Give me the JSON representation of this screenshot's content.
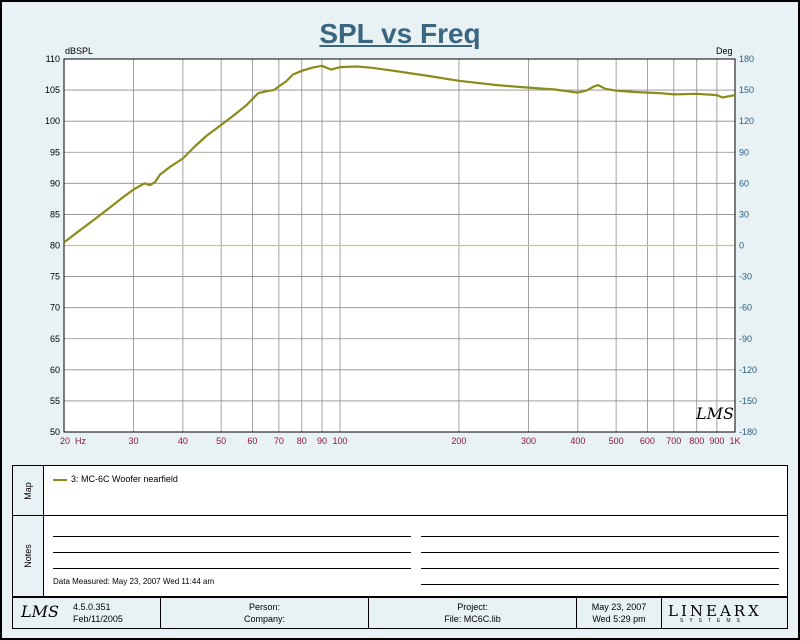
{
  "chart_data": {
    "type": "line",
    "title": "SPL vs Freq",
    "ylabel": "dBSPL",
    "y2label": "Deg",
    "x_scale": "log",
    "xlim": [
      20,
      1000
    ],
    "ylim": [
      50,
      110
    ],
    "y2lim": [
      -180,
      180
    ],
    "grid": true,
    "x_ticks": [
      {
        "v": 20,
        "t": "20"
      },
      {
        "v": 30,
        "t": "30"
      },
      {
        "v": 40,
        "t": "40"
      },
      {
        "v": 50,
        "t": "50"
      },
      {
        "v": 60,
        "t": "60"
      },
      {
        "v": 70,
        "t": "70"
      },
      {
        "v": 80,
        "t": "80"
      },
      {
        "v": 90,
        "t": "90"
      },
      {
        "v": 100,
        "t": "100"
      },
      {
        "v": 200,
        "t": "200"
      },
      {
        "v": 300,
        "t": "300"
      },
      {
        "v": 400,
        "t": "400"
      },
      {
        "v": 500,
        "t": "500"
      },
      {
        "v": 600,
        "t": "600"
      },
      {
        "v": 700,
        "t": "700"
      },
      {
        "v": 800,
        "t": "800"
      },
      {
        "v": 900,
        "t": "900"
      },
      {
        "v": 1000,
        "t": "1K"
      }
    ],
    "x_unit": "Hz",
    "y_ticks": [
      110,
      105,
      100,
      95,
      90,
      85,
      80,
      75,
      70,
      65,
      60,
      55,
      50
    ],
    "y2_ticks": [
      180,
      150,
      120,
      90,
      60,
      30,
      0,
      -30,
      -60,
      -90,
      -120,
      -150,
      -180
    ],
    "series": [
      {
        "name": "3: MC-6C Woofer nearfield",
        "color": "#8b8b1a",
        "x": [
          20,
          22,
          24,
          26,
          28,
          30,
          32,
          33,
          34,
          35,
          37,
          40,
          43,
          46,
          50,
          54,
          58,
          62,
          65,
          68,
          70,
          73,
          76,
          80,
          85,
          90,
          95,
          100,
          110,
          120,
          140,
          170,
          200,
          250,
          300,
          350,
          400,
          420,
          440,
          450,
          470,
          500,
          550,
          600,
          650,
          700,
          800,
          900,
          930,
          1000
        ],
        "y": [
          80.5,
          82.5,
          84.3,
          86,
          87.6,
          89,
          90,
          89.7,
          90.2,
          91.4,
          92.6,
          94,
          96,
          97.7,
          99.4,
          101,
          102.6,
          104.5,
          104.8,
          105,
          105.6,
          106.4,
          107.5,
          108.1,
          108.6,
          108.9,
          108.3,
          108.7,
          108.8,
          108.6,
          108,
          107.2,
          106.5,
          105.8,
          105.4,
          105.1,
          104.6,
          104.9,
          105.6,
          105.8,
          105.2,
          104.9,
          104.7,
          104.6,
          104.5,
          104.3,
          104.4,
          104.2,
          103.8,
          104.2
        ]
      }
    ]
  },
  "ui": {
    "map_label": "Map",
    "notes_label": "Notes",
    "legend_label": "3: MC-6C Woofer nearfield",
    "data_measured": "Data Measured: May 23, 2007   Wed 11:44 am",
    "corner_logo": "LMS"
  },
  "footer": {
    "logo": "LMS",
    "version": "4.5.0.351",
    "version_date": "Feb/11/2005",
    "person_label": "Person:",
    "company_label": "Company:",
    "project_label": "Project:",
    "file_label": "File: MC6C.lib",
    "date": "May 23, 2007",
    "day_time": "Wed  5:29 pm",
    "brand": "LINEARX",
    "brand_sub": "SYSTEMS"
  },
  "colors": {
    "background": "#e8f1f4",
    "grid": "#8c8c8c",
    "x_tick_labels": "#8b1a3a",
    "right_axis_labels": "#2a5f7a",
    "title": "#3b6680",
    "zero_line": "#c8c87a"
  }
}
